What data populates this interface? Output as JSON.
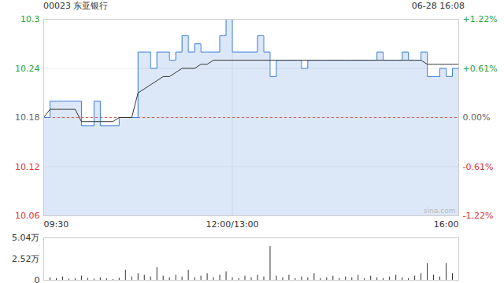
{
  "chart_data": [
    {
      "type": "line",
      "title": "00023 东亚银行",
      "subtitle": "06-28 16:08",
      "watermark": "sina.com",
      "x": [
        0,
        5,
        10,
        15,
        20,
        25,
        30,
        35,
        40,
        45,
        50,
        55,
        60,
        65,
        70,
        75,
        80,
        85,
        90,
        95,
        100,
        105,
        110,
        115,
        120,
        125,
        130,
        135,
        140,
        145,
        150,
        155,
        160,
        165,
        170,
        175,
        180,
        185,
        190,
        195,
        200,
        205,
        210,
        215,
        220,
        225,
        230,
        235,
        240,
        245,
        250,
        255,
        260,
        265,
        270,
        275,
        280,
        285,
        290,
        295,
        300,
        305,
        310,
        315,
        320,
        325,
        330
      ],
      "series": [
        {
          "type": "area",
          "color": "#3d7fd9",
          "line_style": "step",
          "values": [
            10.18,
            10.2,
            10.2,
            10.2,
            10.2,
            10.2,
            10.17,
            10.17,
            10.2,
            10.17,
            10.17,
            10.17,
            10.18,
            10.18,
            10.18,
            10.26,
            10.26,
            10.24,
            10.26,
            10.26,
            10.25,
            10.26,
            10.28,
            10.26,
            10.27,
            10.26,
            10.26,
            10.26,
            10.28,
            10.3,
            10.26,
            10.26,
            10.26,
            10.26,
            10.28,
            10.26,
            10.23,
            10.25,
            10.25,
            10.25,
            10.25,
            10.24,
            10.25,
            10.25,
            10.25,
            10.25,
            10.25,
            10.25,
            10.25,
            10.25,
            10.25,
            10.25,
            10.25,
            10.26,
            10.25,
            10.25,
            10.25,
            10.26,
            10.25,
            10.25,
            10.26,
            10.23,
            10.23,
            10.24,
            10.23,
            10.24,
            10.23
          ]
        },
        {
          "type": "line",
          "color": "#333333",
          "line_style": "solid",
          "values": [
            10.18,
            10.19,
            10.19,
            10.19,
            10.19,
            10.19,
            10.175,
            10.175,
            10.175,
            10.175,
            10.175,
            10.175,
            10.18,
            10.18,
            10.18,
            10.21,
            10.215,
            10.22,
            10.225,
            10.23,
            10.23,
            10.235,
            10.24,
            10.24,
            10.24,
            10.245,
            10.245,
            10.25,
            10.25,
            10.25,
            10.25,
            10.25,
            10.25,
            10.25,
            10.25,
            10.25,
            10.25,
            10.25,
            10.25,
            10.25,
            10.25,
            10.25,
            10.25,
            10.25,
            10.25,
            10.25,
            10.25,
            10.25,
            10.25,
            10.25,
            10.25,
            10.25,
            10.25,
            10.25,
            10.25,
            10.25,
            10.25,
            10.25,
            10.25,
            10.25,
            10.25,
            10.245,
            10.245,
            10.245,
            10.245,
            10.245,
            10.245
          ]
        }
      ],
      "reference_line": 10.18,
      "xlim": [
        0,
        330
      ],
      "xticks": [
        {
          "value": 0,
          "label": "09:30"
        },
        {
          "value": 150,
          "label": "12:00/13:00"
        },
        {
          "value": 330,
          "label": "16:00"
        }
      ],
      "ylim": [
        10.06,
        10.3
      ],
      "yticks": [
        10.06,
        10.12,
        10.18,
        10.24,
        10.3
      ],
      "y2lim": [
        -1.22,
        1.22
      ],
      "y2ticks": [
        {
          "value": -1.22,
          "label": "-1.22%"
        },
        {
          "value": -0.61,
          "label": "-0.61%"
        },
        {
          "value": 0,
          "label": "0.00%"
        },
        {
          "value": 0.61,
          "label": "+0.61%"
        },
        {
          "value": 1.22,
          "label": "+1.22%"
        }
      ],
      "grid": true
    },
    {
      "type": "bar",
      "color": "#333333",
      "x": [
        0,
        5,
        10,
        15,
        20,
        25,
        30,
        35,
        40,
        45,
        50,
        55,
        60,
        65,
        70,
        75,
        80,
        85,
        90,
        95,
        100,
        105,
        110,
        115,
        120,
        125,
        130,
        135,
        140,
        145,
        150,
        155,
        160,
        165,
        170,
        175,
        180,
        185,
        190,
        195,
        200,
        205,
        210,
        215,
        220,
        225,
        230,
        235,
        240,
        245,
        250,
        255,
        260,
        265,
        270,
        275,
        280,
        285,
        290,
        295,
        300,
        305,
        310,
        315,
        320,
        325,
        330
      ],
      "values": [
        12000,
        3000,
        2000,
        4000,
        1500,
        2000,
        5000,
        2500,
        1500,
        3000,
        2000,
        1000,
        2500,
        12000,
        4000,
        8000,
        6000,
        4000,
        15000,
        5000,
        3000,
        6000,
        4000,
        12000,
        3000,
        5000,
        8000,
        3000,
        6000,
        10000,
        3000,
        2000,
        5000,
        3000,
        6000,
        4000,
        40000,
        5000,
        3000,
        6000,
        2000,
        4000,
        3000,
        8000,
        2000,
        3000,
        5000,
        2000,
        4000,
        3000,
        6000,
        2000,
        5000,
        3000,
        2000,
        4000,
        6000,
        3000,
        2000,
        5000,
        8000,
        20000,
        6000,
        4000,
        20000,
        8000,
        15000
      ],
      "xlim": [
        0,
        330
      ],
      "ylim": [
        0,
        50400
      ],
      "yticks": [
        0,
        {
          "value": 25200,
          "label": "2.52万"
        },
        {
          "value": 50400,
          "label": "5.04万"
        }
      ],
      "tick_labels": "y"
    }
  ]
}
